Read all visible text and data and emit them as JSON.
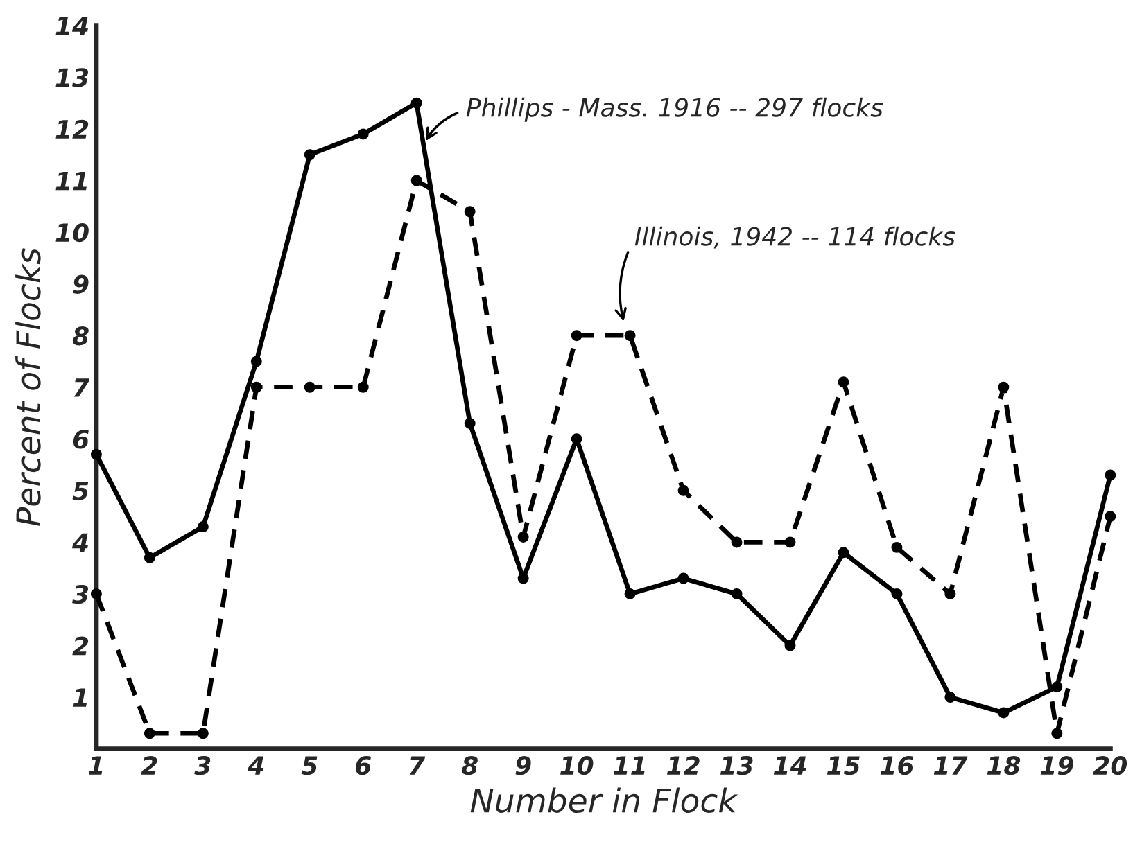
{
  "chart_data": {
    "type": "line",
    "xlabel": "Number in Flock",
    "ylabel": "Percent of Flocks",
    "x": [
      1,
      2,
      3,
      4,
      5,
      6,
      7,
      8,
      9,
      10,
      11,
      12,
      13,
      14,
      15,
      16,
      17,
      18,
      19,
      20
    ],
    "series": [
      {
        "color": "#000000",
        "line_style": "solid",
        "values": [
          5.7,
          3.7,
          4.3,
          7.5,
          11.5,
          11.9,
          12.5,
          6.3,
          3.3,
          6.0,
          3.0,
          3.3,
          3.0,
          2.0,
          3.8,
          3.0,
          1.0,
          0.7,
          1.2,
          5.3
        ]
      },
      {
        "color": "#000000",
        "line_style": "dashed",
        "values": [
          3.0,
          0.3,
          0.3,
          7.0,
          7.0,
          7.0,
          11.0,
          10.4,
          4.1,
          8.0,
          8.0,
          5.0,
          4.0,
          4.0,
          7.1,
          3.9,
          3.0,
          7.0,
          0.3,
          4.5
        ]
      }
    ],
    "marker": "circle",
    "xlim": [
      1,
      20
    ],
    "xticks": [
      1,
      2,
      3,
      4,
      5,
      6,
      7,
      8,
      9,
      10,
      11,
      12,
      13,
      14,
      15,
      16,
      17,
      18,
      19,
      20
    ],
    "ylim": [
      0,
      14
    ],
    "yticks": [
      1,
      2,
      3,
      4,
      5,
      6,
      7,
      8,
      9,
      10,
      11,
      12,
      13,
      14
    ],
    "grid": false,
    "legend": false,
    "annotations": [
      {
        "text": "Phillips - Mass. 1916 -- 297 flocks",
        "x": 7.13,
        "y": 11.7
      },
      {
        "text": "Illinois, 1942 -- 114 flocks",
        "x": 10.9,
        "y": 8.2
      }
    ]
  }
}
